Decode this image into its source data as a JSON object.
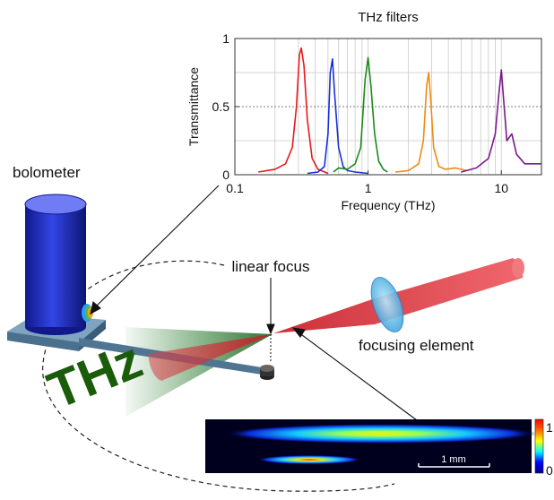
{
  "labels": {
    "bolometer": "bolometer",
    "linear_focus": "linear focus",
    "focusing_element": "focusing element",
    "thz": "THz",
    "scale_bar": "1 mm",
    "colorbar_max": "1",
    "colorbar_min": "0"
  },
  "colors": {
    "bolometer_body": "#2b3bd6",
    "bolometer_base": "#5f88a8",
    "beam_red": "#e0383f",
    "thz_green": "#2e7d32",
    "thz_text": "#1a5c0a",
    "lens": "#5ab4e6"
  },
  "chart_data": {
    "type": "line",
    "title": "THz filters",
    "xlabel": "Frequency (THz)",
    "ylabel": "Transmittance",
    "x_scale": "log",
    "xlim": [
      0.1,
      20
    ],
    "ylim": [
      0,
      1
    ],
    "xtick_labels": [
      "0.1",
      "1",
      "10"
    ],
    "ytick_labels": [
      "0",
      "0.5",
      "1"
    ],
    "grid": true,
    "series": [
      {
        "color": "#e8191b",
        "x": [
          0.15,
          0.2,
          0.24,
          0.27,
          0.29,
          0.305,
          0.315,
          0.33,
          0.35,
          0.38,
          0.42,
          0.5
        ],
        "y": [
          0.02,
          0.04,
          0.08,
          0.2,
          0.5,
          0.88,
          0.93,
          0.8,
          0.4,
          0.12,
          0.04,
          0.01
        ]
      },
      {
        "color": "#1730d6",
        "x": [
          0.35,
          0.42,
          0.47,
          0.5,
          0.52,
          0.54,
          0.56,
          0.6,
          0.65,
          0.7,
          0.8,
          1.0
        ],
        "y": [
          0.01,
          0.02,
          0.06,
          0.3,
          0.75,
          0.85,
          0.6,
          0.2,
          0.06,
          0.03,
          0.02,
          0.01
        ]
      },
      {
        "color": "#1a8a1a",
        "x": [
          0.55,
          0.6,
          0.7,
          0.8,
          0.88,
          0.95,
          1.0,
          1.05,
          1.12,
          1.2,
          1.3,
          1.4
        ],
        "y": [
          0.02,
          0.05,
          0.04,
          0.08,
          0.2,
          0.7,
          0.86,
          0.65,
          0.3,
          0.1,
          0.04,
          0.02
        ]
      },
      {
        "color": "#f08a12",
        "x": [
          1.6,
          2.0,
          2.4,
          2.6,
          2.75,
          2.85,
          2.95,
          3.1,
          3.4,
          3.8,
          4.5,
          5.5
        ],
        "y": [
          0.02,
          0.03,
          0.08,
          0.25,
          0.65,
          0.75,
          0.55,
          0.2,
          0.06,
          0.04,
          0.05,
          0.03
        ]
      },
      {
        "color": "#7a1a8c",
        "x": [
          5.0,
          6.5,
          8.0,
          9.0,
          9.6,
          10.0,
          10.4,
          11.0,
          12.0,
          13.0,
          15.0,
          20.0
        ],
        "y": [
          0.02,
          0.05,
          0.12,
          0.3,
          0.6,
          0.77,
          0.55,
          0.25,
          0.3,
          0.15,
          0.08,
          0.08
        ]
      }
    ]
  }
}
